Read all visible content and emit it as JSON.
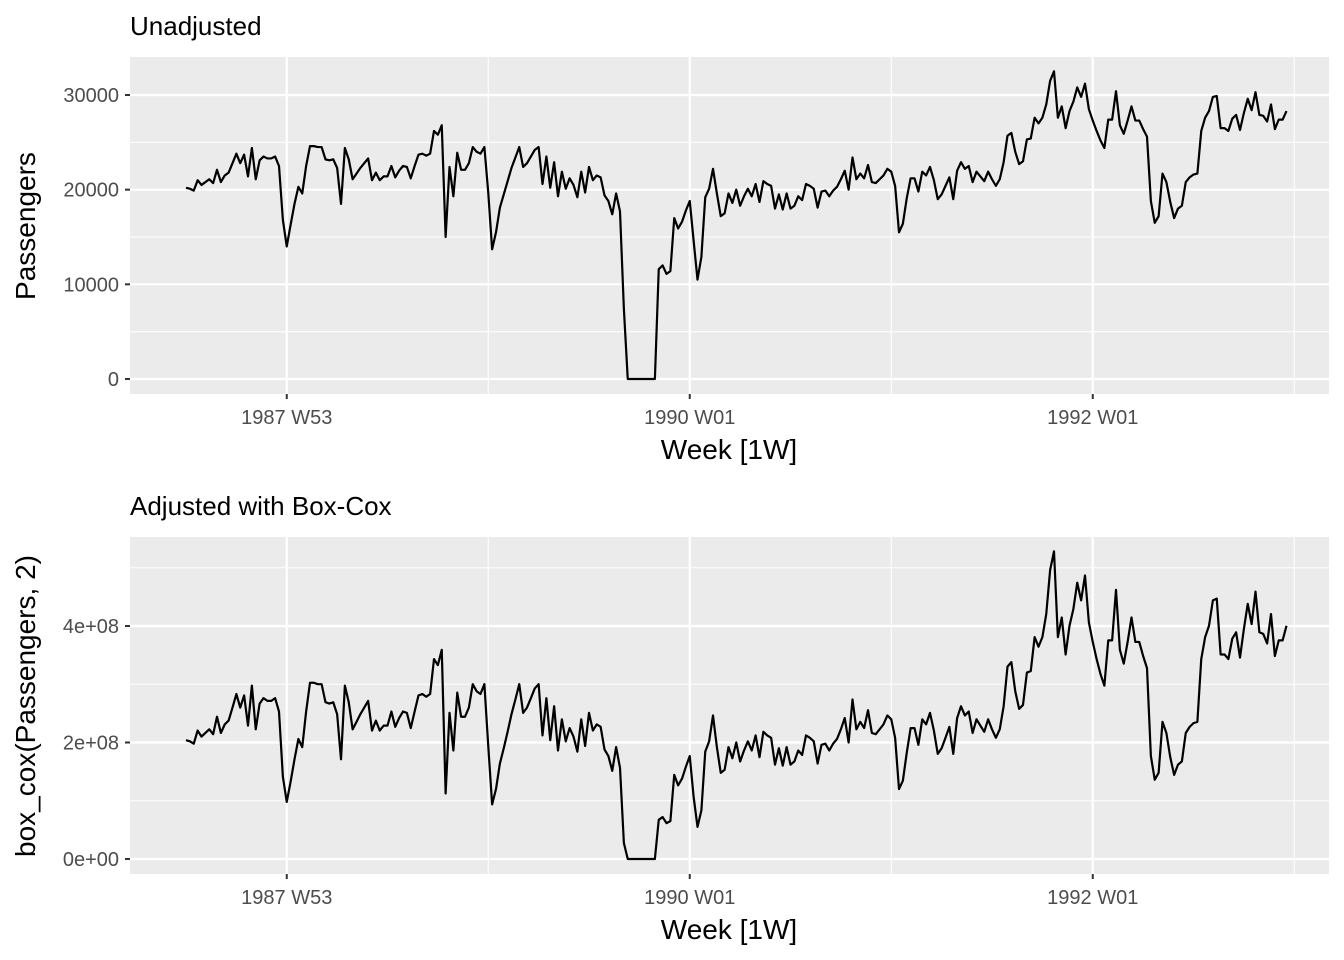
{
  "chart_data": [
    {
      "type": "line",
      "title": "Unadjusted",
      "xlabel": "Week [1W]",
      "ylabel": "Passengers",
      "ylim": [
        -1500,
        34500
      ],
      "y_ticks": [
        0,
        10000,
        20000,
        30000
      ],
      "y_tick_labels": [
        "0",
        "10000",
        "20000",
        "30000"
      ],
      "x_ticks": [
        "1987 W53",
        "1990 W01",
        "1992 W01"
      ],
      "grid": true,
      "series": [
        {
          "x_start": "1987 W27",
          "x_step": "1W",
          "values": [
            20200,
            20100,
            19900,
            21000,
            20500,
            20800,
            21100,
            20700,
            22100,
            20800,
            21500,
            21800,
            22800,
            23800,
            22800,
            23700,
            21400,
            24400,
            21100,
            23100,
            23500,
            23300,
            23300,
            23500,
            22500,
            16800,
            14000,
            16300,
            18500,
            20300,
            19600,
            22500,
            24600,
            24600,
            24500,
            24500,
            23200,
            23100,
            23200,
            22300,
            18500,
            24400,
            23200,
            21100,
            21700,
            22300,
            22800,
            23300,
            21000,
            21800,
            21000,
            21400,
            21400,
            22500,
            21300,
            22000,
            22500,
            22400,
            21200,
            22500,
            23700,
            23800,
            23600,
            23800,
            26200,
            25800,
            26800,
            15000,
            22400,
            19300,
            23900,
            22100,
            22100,
            22800,
            24500,
            24000,
            23800,
            24500,
            19700,
            13700,
            15500,
            18100,
            19500,
            20900,
            22300,
            23400,
            24500,
            22400,
            22800,
            23500,
            24200,
            24500,
            20600,
            23500,
            20200,
            22900,
            19300,
            21900,
            20100,
            21200,
            20500,
            19200,
            21900,
            19700,
            22400,
            21000,
            21500,
            21300,
            19400,
            18800,
            17400,
            19600,
            17700,
            7400,
            0,
            0,
            0,
            0,
            0,
            0,
            0,
            0,
            11600,
            12000,
            11100,
            11400,
            17000,
            15900,
            16600,
            17800,
            18800,
            14600,
            10500,
            12900,
            19200,
            20100,
            22200,
            19600,
            17200,
            17500,
            19600,
            18600,
            20000,
            18300,
            19300,
            20100,
            19300,
            20600,
            18700,
            20900,
            20600,
            20400,
            18000,
            19500,
            17900,
            19600,
            18000,
            18300,
            19300,
            18900,
            20600,
            20400,
            20100,
            18100,
            19800,
            19900,
            19300,
            19900,
            20300,
            21100,
            22000,
            20000,
            23400,
            21100,
            21700,
            21200,
            22600,
            20800,
            20700,
            21100,
            21500,
            22200,
            21900,
            20400,
            15500,
            16400,
            19100,
            21200,
            21200,
            19800,
            21900,
            21500,
            22400,
            21000,
            19000,
            19500,
            20400,
            21300,
            19000,
            22000,
            22900,
            22200,
            22500,
            20800,
            21900,
            21400,
            20900,
            21900,
            21100,
            20400,
            21100,
            22900,
            25700,
            26000,
            24000,
            22700,
            23000,
            25300,
            25400,
            27600,
            27000,
            27600,
            29000,
            31500,
            32500,
            27600,
            28800,
            26500,
            28300,
            29300,
            30800,
            29800,
            31200,
            28500,
            27300,
            26200,
            25200,
            24400,
            27400,
            27400,
            30400,
            26800,
            25900,
            27300,
            28800,
            27300,
            27300,
            26400,
            25600,
            18800,
            16500,
            17200,
            21700,
            20800,
            18700,
            17000,
            18000,
            18300,
            20800,
            21300,
            21600,
            21700,
            26200,
            27600,
            28300,
            29800,
            29900,
            26500,
            26500,
            26200,
            27500,
            27900,
            26300,
            28100,
            29600,
            28400,
            30300,
            27900,
            27800,
            27200,
            29000,
            26400,
            27400,
            27400,
            28300
          ]
        }
      ]
    },
    {
      "type": "line",
      "title": "Adjusted with Box-Cox",
      "xlabel": "Week [1W]",
      "ylabel": "box_cox(Passengers, 2)",
      "ylim": [
        -25000000,
        535000000
      ],
      "y_ticks": [
        0,
        200000000,
        400000000
      ],
      "y_tick_labels": [
        "0e+00",
        "2e+08",
        "4e+08"
      ],
      "x_ticks": [
        "1987 W53",
        "1990 W01",
        "1992 W01"
      ],
      "grid": true,
      "series": [
        {
          "x_start": "1987 W27",
          "x_step": "1W",
          "transform": "box_cox(Passengers, 2)"
        }
      ]
    }
  ]
}
